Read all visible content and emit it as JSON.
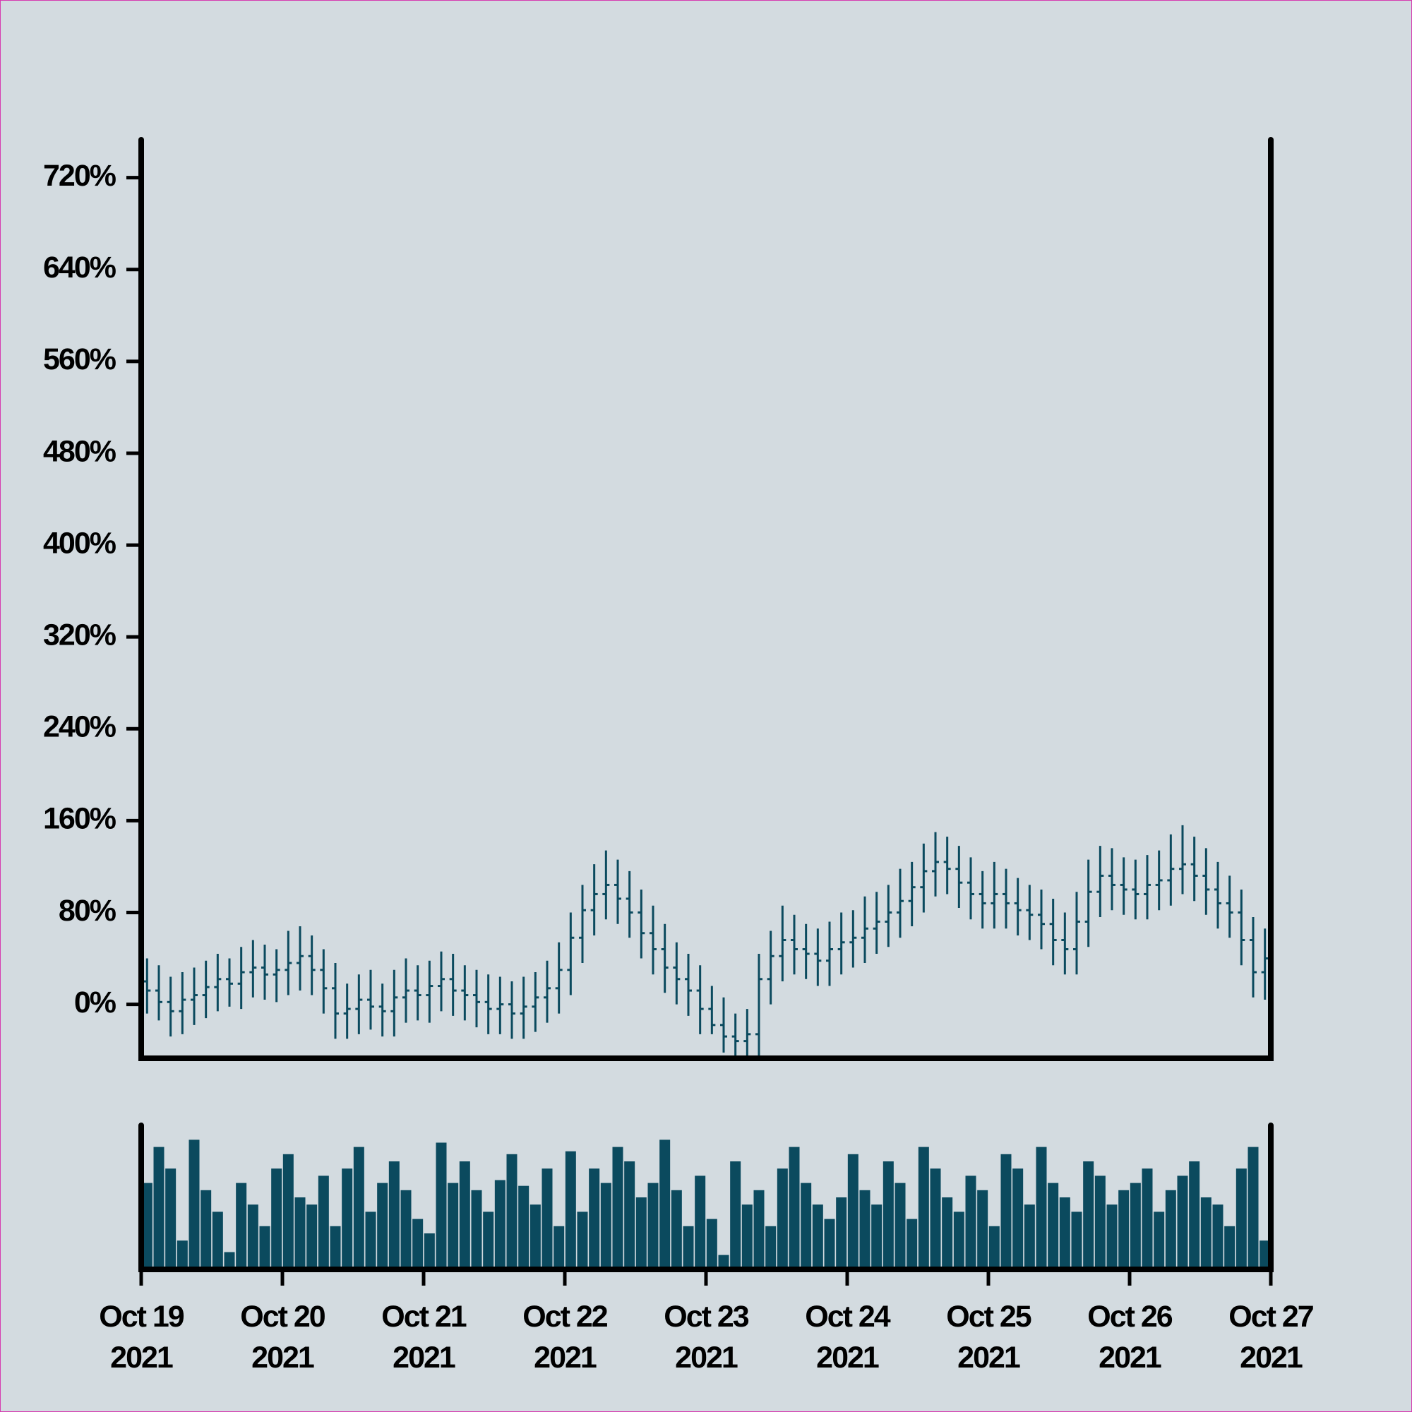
{
  "chart_data": {
    "type": "ohlc",
    "color": "#0b4a5e",
    "xlim": [
      0,
      8
    ],
    "xticks": [
      {
        "value": 0,
        "label": "Oct 19\n2021"
      },
      {
        "value": 1,
        "label": "Oct 20\n2021"
      },
      {
        "value": 2,
        "label": "Oct 21\n2021"
      },
      {
        "value": 3,
        "label": "Oct 22\n2021"
      },
      {
        "value": 4,
        "label": "Oct 23\n2021"
      },
      {
        "value": 5,
        "label": "Oct 24\n2021"
      },
      {
        "value": 6,
        "label": "Oct 25\n2021"
      },
      {
        "value": 7,
        "label": "Oct 26\n2021"
      },
      {
        "value": 8,
        "label": "Oct 27\n2021"
      }
    ],
    "ylim": [
      -47,
      753
    ],
    "yticks": [
      {
        "value": 0,
        "label": "0%"
      },
      {
        "value": 80,
        "label": "80%"
      },
      {
        "value": 160,
        "label": "160%"
      },
      {
        "value": 240,
        "label": "240%"
      },
      {
        "value": 320,
        "label": "320%"
      },
      {
        "value": 400,
        "label": "400%"
      },
      {
        "value": 480,
        "label": "480%"
      },
      {
        "value": 560,
        "label": "560%"
      },
      {
        "value": 640,
        "label": "640%"
      },
      {
        "value": 720,
        "label": "720%"
      }
    ],
    "volume_ylim": [
      0,
      100
    ],
    "open": [
      20,
      12,
      2,
      -6,
      4,
      8,
      15,
      22,
      18,
      28,
      32,
      26,
      30,
      36,
      42,
      30,
      14,
      -8,
      -4,
      4,
      -2,
      -6,
      6,
      12,
      8,
      16,
      22,
      12,
      8,
      2,
      -4,
      0,
      -8,
      -2,
      6,
      14,
      30,
      58,
      82,
      96,
      104,
      92,
      80,
      62,
      48,
      32,
      22,
      12,
      -4,
      -18,
      -28,
      -32,
      -26,
      22,
      42,
      56,
      48,
      44,
      38,
      48,
      54,
      58,
      66,
      72,
      80,
      90,
      102,
      116,
      124,
      118,
      106,
      96,
      88,
      96,
      88,
      82,
      78,
      70,
      56,
      48,
      72,
      98,
      112,
      104,
      100,
      96,
      104,
      108,
      118,
      122,
      112,
      100,
      88,
      80,
      56,
      28
    ],
    "high": [
      40,
      34,
      24,
      28,
      32,
      38,
      44,
      40,
      50,
      56,
      52,
      48,
      64,
      68,
      60,
      48,
      36,
      18,
      26,
      30,
      18,
      30,
      40,
      34,
      38,
      46,
      44,
      34,
      30,
      26,
      24,
      20,
      24,
      28,
      38,
      54,
      80,
      104,
      122,
      134,
      126,
      116,
      100,
      86,
      70,
      54,
      44,
      34,
      16,
      6,
      -8,
      -4,
      44,
      64,
      86,
      78,
      70,
      66,
      72,
      80,
      82,
      94,
      98,
      104,
      118,
      124,
      140,
      150,
      146,
      138,
      128,
      116,
      124,
      118,
      110,
      104,
      100,
      92,
      80,
      98,
      126,
      138,
      136,
      128,
      126,
      130,
      134,
      148,
      156,
      146,
      136,
      124,
      112,
      100,
      76,
      66
    ],
    "low": [
      -8,
      -14,
      -28,
      -26,
      -18,
      -12,
      -6,
      -2,
      -4,
      6,
      4,
      2,
      8,
      12,
      8,
      -8,
      -30,
      -30,
      -26,
      -22,
      -28,
      -28,
      -16,
      -14,
      -16,
      -6,
      -10,
      -14,
      -20,
      -26,
      -26,
      -30,
      -30,
      -24,
      -16,
      -8,
      8,
      36,
      60,
      74,
      70,
      58,
      40,
      26,
      10,
      0,
      -10,
      -26,
      -26,
      -42,
      -52,
      -54,
      -48,
      0,
      20,
      26,
      22,
      16,
      16,
      26,
      32,
      36,
      44,
      50,
      58,
      68,
      80,
      94,
      96,
      84,
      74,
      66,
      66,
      66,
      60,
      56,
      48,
      34,
      26,
      26,
      50,
      76,
      82,
      78,
      74,
      74,
      82,
      86,
      96,
      90,
      78,
      66,
      58,
      34,
      6,
      4
    ],
    "close": [
      12,
      2,
      -6,
      4,
      8,
      15,
      22,
      18,
      28,
      32,
      26,
      30,
      36,
      42,
      30,
      14,
      -8,
      -4,
      4,
      -2,
      -6,
      6,
      12,
      8,
      16,
      22,
      12,
      8,
      2,
      -4,
      0,
      -8,
      -2,
      6,
      14,
      30,
      58,
      82,
      96,
      104,
      92,
      80,
      62,
      48,
      32,
      22,
      12,
      -4,
      -18,
      -28,
      -32,
      -26,
      22,
      42,
      56,
      48,
      44,
      38,
      48,
      54,
      58,
      66,
      72,
      80,
      90,
      102,
      116,
      124,
      118,
      106,
      96,
      88,
      96,
      88,
      82,
      78,
      70,
      56,
      48,
      72,
      98,
      112,
      104,
      100,
      96,
      104,
      108,
      118,
      122,
      112,
      100,
      88,
      80,
      56,
      28,
      40
    ],
    "volume": [
      60,
      85,
      70,
      20,
      90,
      55,
      40,
      12,
      60,
      45,
      30,
      70,
      80,
      50,
      45,
      65,
      30,
      70,
      85,
      40,
      60,
      75,
      55,
      35,
      25,
      88,
      60,
      75,
      55,
      40,
      62,
      80,
      58,
      45,
      70,
      30,
      82,
      40,
      70,
      60,
      85,
      75,
      50,
      60,
      90,
      55,
      30,
      65,
      35,
      10,
      75,
      45,
      55,
      30,
      70,
      85,
      60,
      45,
      35,
      50,
      80,
      55,
      45,
      75,
      60,
      35,
      85,
      70,
      50,
      40,
      65,
      55,
      30,
      80,
      70,
      45,
      85,
      60,
      50,
      40,
      75,
      65,
      45,
      55,
      60,
      70,
      40,
      55,
      65,
      75,
      50,
      45,
      30,
      70,
      85,
      20
    ]
  }
}
